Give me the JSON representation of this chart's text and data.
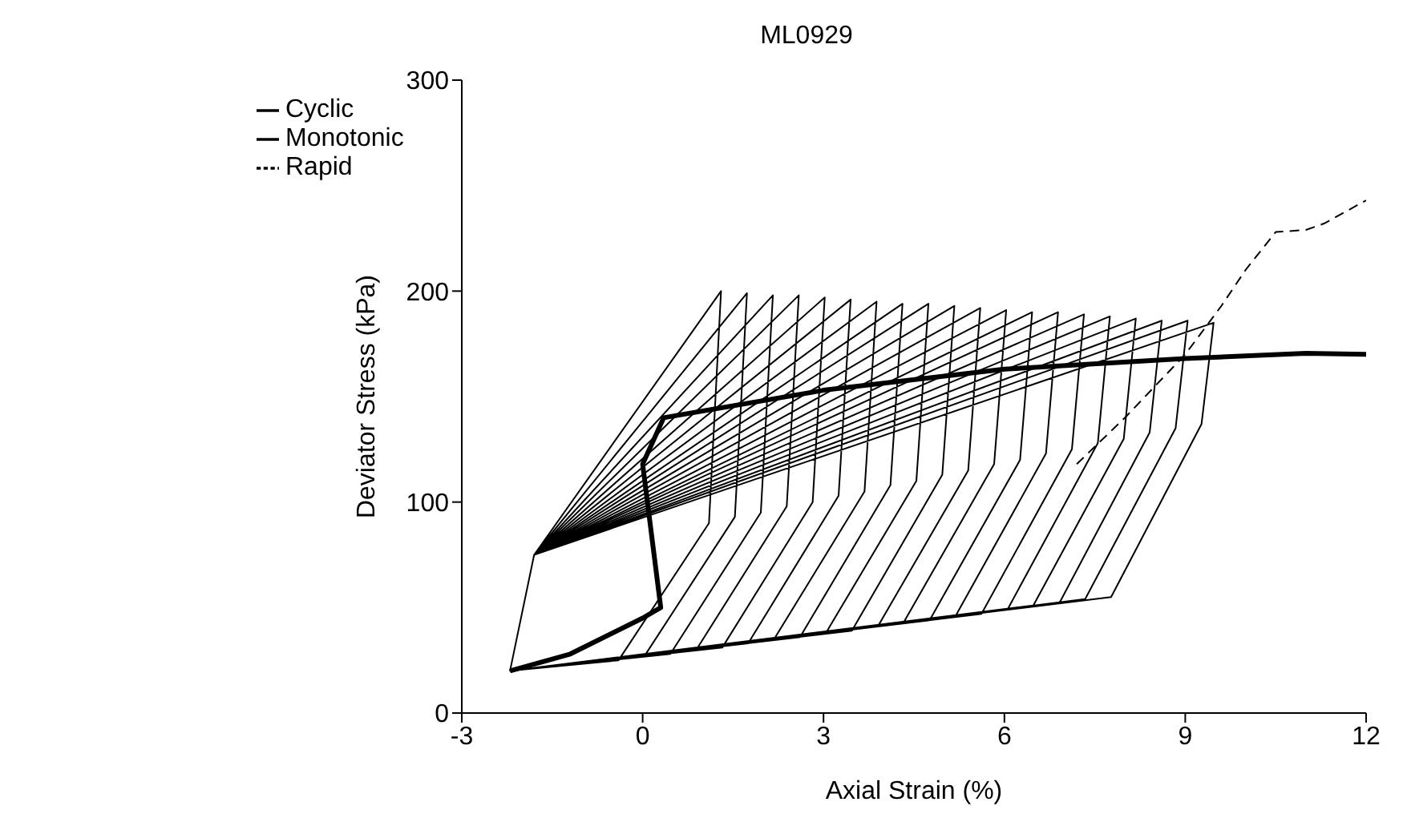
{
  "chart_data": {
    "type": "line",
    "title": "ML0929",
    "xlabel": "Axial Strain (%)",
    "ylabel": "Deviator Stress (kPa)",
    "xlim": [
      -3,
      12
    ],
    "xticks": [
      -3,
      0,
      3,
      6,
      9,
      12
    ],
    "ylim": [
      0,
      300
    ],
    "yticks": [
      0,
      100,
      200,
      300
    ],
    "grid": false,
    "legend": "top left",
    "marker": "none",
    "series": [
      {
        "name": "Cyclic",
        "color": "#000000",
        "line_style": "solid",
        "x": [
          -2.2,
          -0.4,
          1.1,
          1.3,
          -1.8,
          -2.2,
          0.03,
          1.53,
          1.73,
          -1.8,
          -2.2,
          0.46,
          1.96,
          2.16,
          -1.8,
          -2.2,
          0.89,
          2.39,
          2.59,
          -1.8,
          -2.2,
          1.32,
          2.82,
          3.02,
          -1.8,
          -2.2,
          1.75,
          3.25,
          3.45,
          -1.8,
          -2.2,
          2.18,
          3.68,
          3.88,
          -1.8,
          -2.2,
          2.61,
          4.11,
          4.31,
          -1.8,
          -2.2,
          3.04,
          4.54,
          4.74,
          -1.8,
          -2.2,
          3.47,
          4.97,
          5.17,
          -1.8,
          -2.2,
          3.9,
          5.4,
          5.6,
          -1.8,
          -2.2,
          4.33,
          5.83,
          6.03,
          -1.8,
          -2.2,
          4.76,
          6.26,
          6.46,
          -1.8,
          -2.2,
          5.19,
          6.69,
          6.89,
          -1.8,
          -2.2,
          5.62,
          7.12,
          7.32,
          -1.8,
          -2.2,
          6.05,
          7.55,
          7.75,
          -1.8,
          -2.2,
          6.48,
          7.98,
          8.18,
          -1.8,
          -2.2,
          6.91,
          8.41,
          8.61,
          -1.8,
          -2.2,
          7.34,
          8.84,
          9.04,
          -1.8,
          -2.2,
          7.77,
          9.27,
          9.47,
          -1.8
        ],
        "values": [
          20,
          25,
          90,
          200,
          75,
          20,
          27,
          93,
          199,
          75,
          20,
          28,
          95,
          198,
          75,
          20,
          30,
          98,
          198,
          75,
          20,
          31,
          100,
          197,
          75,
          20,
          33,
          103,
          196,
          75,
          20,
          35,
          105,
          195,
          75,
          20,
          36,
          108,
          194,
          75,
          20,
          38,
          110,
          194,
          75,
          20,
          39,
          113,
          193,
          75,
          20,
          41,
          115,
          192,
          75,
          20,
          43,
          118,
          191,
          75,
          20,
          44,
          120,
          190,
          75,
          20,
          46,
          123,
          190,
          75,
          20,
          47,
          125,
          189,
          75,
          20,
          49,
          128,
          188,
          75,
          20,
          51,
          130,
          187,
          75,
          20,
          52,
          133,
          186,
          75,
          20,
          54,
          135,
          186,
          75,
          20,
          55,
          137,
          185,
          75
        ]
      },
      {
        "name": "Monotonic",
        "color": "#000000",
        "line_style": "solid",
        "x": [
          -2.2,
          -1.2,
          0,
          0.3,
          0,
          0.35,
          3,
          6,
          9,
          11,
          12
        ],
        "values": [
          20,
          28,
          45,
          50,
          118,
          140,
          153,
          163,
          168,
          170.5,
          170
        ]
      },
      {
        "name": "Rapid",
        "color": "#000000",
        "line_style": "dashed",
        "x": [
          7.2,
          8,
          9,
          9.6,
          10,
          10.5,
          11,
          11.3,
          12
        ],
        "values": [
          118,
          140,
          170,
          193,
          210,
          228,
          229,
          232,
          243
        ]
      }
    ]
  }
}
